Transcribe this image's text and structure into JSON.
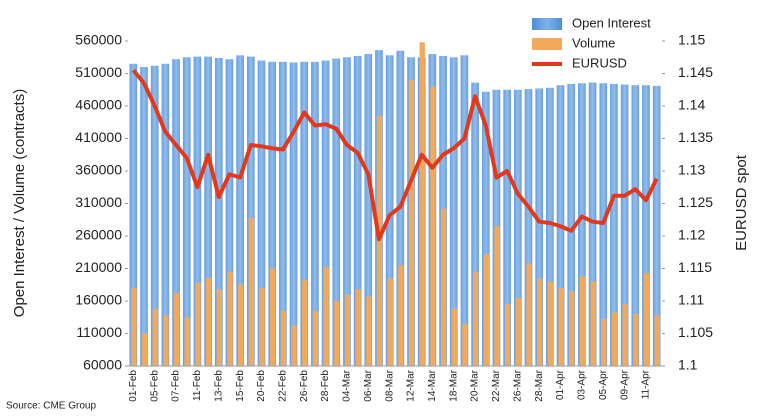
{
  "chart_data": {
    "type": "bar-line",
    "y_label": "Open Interest / Volume (contracts)",
    "y2_label": "EURUSD spot",
    "source": "Source: CME Group",
    "categories": [
      "01-Feb",
      null,
      "05-Feb",
      null,
      "07-Feb",
      null,
      "11-Feb",
      null,
      "13-Feb",
      null,
      "15-Feb",
      null,
      "20-Feb",
      null,
      "22-Feb",
      null,
      "26-Feb",
      null,
      "28-Feb",
      null,
      "04-Mar",
      null,
      "06-Mar",
      null,
      "08-Mar",
      null,
      "12-Mar",
      null,
      "14-Mar",
      null,
      "18-Mar",
      null,
      "20-Mar",
      null,
      "22-Mar",
      null,
      "26-Mar",
      null,
      "28-Mar",
      null,
      "01-Apr",
      null,
      "03-Apr",
      null,
      "05-Apr",
      null,
      "09-Apr",
      null,
      "11-Apr",
      null
    ],
    "series": [
      {
        "name": "Open Interest",
        "color": "#7eb1e8",
        "kind": "bar",
        "values": [
          525000,
          520000,
          522000,
          525000,
          532000,
          535000,
          536000,
          536000,
          534000,
          532000,
          538000,
          536000,
          530000,
          528000,
          528000,
          527000,
          528000,
          528000,
          530000,
          533000,
          535000,
          537000,
          540000,
          546000,
          538000,
          545000,
          535000,
          535000,
          540000,
          537000,
          535000,
          538000,
          496000,
          482000,
          485000,
          485000,
          485000,
          486000,
          487000,
          488000,
          492000,
          494000,
          495000,
          496000,
          495000,
          494000,
          493000,
          492000,
          492000,
          491000
        ]
      },
      {
        "name": "Volume",
        "color": "#f2a95c",
        "kind": "bar",
        "values": [
          180000,
          110000,
          148000,
          138000,
          172000,
          135000,
          188000,
          195000,
          178000,
          205000,
          185000,
          288000,
          180000,
          210000,
          145000,
          122000,
          192000,
          145000,
          212000,
          160000,
          170000,
          178000,
          167000,
          445000,
          195000,
          215000,
          500000,
          558000,
          490000,
          302000,
          148000,
          125000,
          205000,
          232000,
          275000,
          155000,
          165000,
          218000,
          195000,
          190000,
          180000,
          175000,
          198000,
          190000,
          133000,
          142000,
          155000,
          140000,
          203000,
          138000
        ]
      },
      {
        "name": "EURUSD",
        "color": "#e2391d",
        "kind": "line",
        "axis": "y2",
        "values": [
          1.1455,
          1.1435,
          1.14,
          1.136,
          1.134,
          1.132,
          1.1275,
          1.1325,
          1.126,
          1.1295,
          1.129,
          1.134,
          1.1338,
          1.1335,
          1.1333,
          1.136,
          1.139,
          1.137,
          1.1372,
          1.1365,
          1.134,
          1.1328,
          1.1295,
          1.1195,
          1.1232,
          1.1245,
          1.1285,
          1.1325,
          1.1305,
          1.1325,
          1.1335,
          1.135,
          1.1415,
          1.137,
          1.129,
          1.13,
          1.1265,
          1.1245,
          1.1222,
          1.122,
          1.1215,
          1.1208,
          1.123,
          1.1222,
          1.122,
          1.1262,
          1.1262,
          1.1272,
          1.1255,
          1.1288
        ]
      }
    ],
    "ylim": [
      60000,
      560000
    ],
    "yticks": [
      60000,
      110000,
      160000,
      210000,
      260000,
      310000,
      360000,
      410000,
      460000,
      510000,
      560000
    ],
    "y2lim": [
      1.1,
      1.15
    ],
    "y2ticks": [
      1.1,
      1.105,
      1.11,
      1.115,
      1.12,
      1.125,
      1.13,
      1.135,
      1.14,
      1.145,
      1.15
    ],
    "legend": "top-right"
  }
}
